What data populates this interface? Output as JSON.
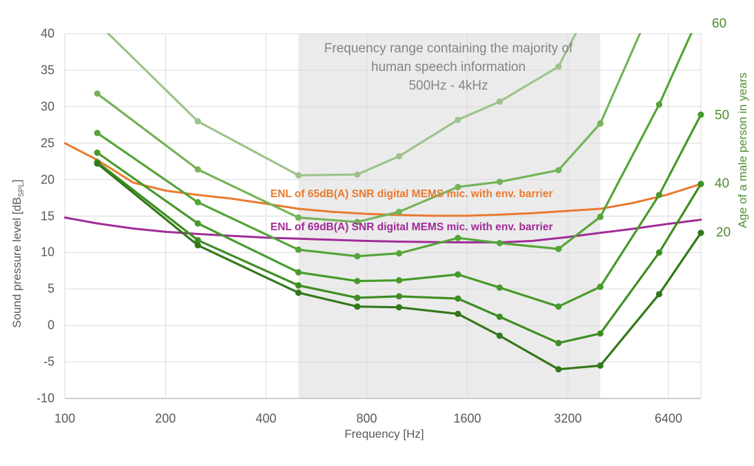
{
  "title": {
    "line1": "Frequency range containing the majority of",
    "line2": "human speech information",
    "line3": "500Hz - 4kHz"
  },
  "axes": {
    "x": {
      "title": "Frequency [Hz]",
      "ticks": [
        100,
        200,
        400,
        800,
        1600,
        3200,
        6400
      ],
      "min": 100,
      "max": 8000,
      "scale": "log2"
    },
    "y_left": {
      "title_prefix": "Sound pressure level [dB",
      "title_sub": "SPL",
      "title_suffix": "]",
      "min": -10,
      "max": 40,
      "step": 5,
      "ticks": [
        40,
        35,
        30,
        25,
        20,
        15,
        10,
        5,
        0,
        -5,
        -10
      ]
    },
    "y_right": {
      "title": "Age of a male person in years",
      "color": "#4e8f2d"
    }
  },
  "annotations": {
    "mic65_label": "ENL of 65dB(A) SNR digital MEMS mic. with env. barrier",
    "mic69_label": "ENL of 69dB(A) SNR digital MEMS mic. with env. barrier"
  },
  "colors": {
    "band": "#ebebeb",
    "gridline": "#d9d9d9",
    "axis_line": "#bfbfbf",
    "tick_text": "#595959",
    "title_text": "#848484",
    "mic65": "#e87a2d",
    "mic69": "#a02b97",
    "age_label": "#4c8c2a"
  },
  "chart_data": {
    "type": "line",
    "x_axis": {
      "label": "Frequency [Hz]",
      "scale": "log2",
      "min": 100,
      "max": 8000,
      "ticks": [
        100,
        200,
        400,
        800,
        1600,
        3200,
        6400
      ]
    },
    "y_axis": {
      "label": "Sound pressure level [dB SPL]",
      "min": -10,
      "max": 40,
      "step": 5,
      "grid": true
    },
    "shaded_band": {
      "from_hz": 500,
      "to_hz": 4000,
      "note": "Frequency range containing the majority of human speech information 500Hz - 4kHz"
    },
    "legend_position": "none",
    "series": [
      {
        "id": "hearing-threshold-oldest-light",
        "end_label": null,
        "color": "#9dc38b",
        "markers": true,
        "points": [
          [
            125,
            41.5
          ],
          [
            250,
            28.0
          ],
          [
            500,
            20.6
          ],
          [
            750,
            20.7
          ],
          [
            1000,
            23.2
          ],
          [
            1500,
            28.2
          ],
          [
            2000,
            30.7
          ],
          [
            3000,
            35.5
          ],
          [
            4000,
            46.5
          ]
        ]
      },
      {
        "id": "hearing-threshold-older-light",
        "end_label": null,
        "color": "#73b457",
        "markers": true,
        "points": [
          [
            125,
            31.8
          ],
          [
            250,
            21.4
          ],
          [
            500,
            14.8
          ],
          [
            750,
            14.2
          ],
          [
            1000,
            15.6
          ],
          [
            1500,
            19.0
          ],
          [
            2000,
            19.7
          ],
          [
            3000,
            21.3
          ],
          [
            4000,
            27.7
          ],
          [
            6000,
            46.0
          ]
        ]
      },
      {
        "id": "age-60",
        "end_label": "60",
        "color": "#54a538",
        "markers": true,
        "points": [
          [
            125,
            26.4
          ],
          [
            250,
            16.9
          ],
          [
            500,
            10.4
          ],
          [
            750,
            9.5
          ],
          [
            1000,
            9.9
          ],
          [
            1500,
            12.0
          ],
          [
            2000,
            11.3
          ],
          [
            3000,
            10.5
          ],
          [
            4000,
            14.9
          ],
          [
            6000,
            30.3
          ],
          [
            8000,
            43.0
          ]
        ]
      },
      {
        "id": "age-50",
        "end_label": "50",
        "color": "#479a2b",
        "markers": true,
        "points": [
          [
            125,
            23.7
          ],
          [
            250,
            14.0
          ],
          [
            500,
            7.3
          ],
          [
            750,
            6.1
          ],
          [
            1000,
            6.2
          ],
          [
            1500,
            7.0
          ],
          [
            2000,
            5.2
          ],
          [
            3000,
            2.6
          ],
          [
            4000,
            5.3
          ],
          [
            6000,
            17.9
          ],
          [
            8000,
            28.9
          ]
        ]
      },
      {
        "id": "age-40",
        "end_label": "40",
        "color": "#3f8d23",
        "markers": true,
        "points": [
          [
            125,
            22.4
          ],
          [
            250,
            11.7
          ],
          [
            500,
            5.5
          ],
          [
            750,
            3.8
          ],
          [
            1000,
            4.0
          ],
          [
            1500,
            3.7
          ],
          [
            2000,
            1.2
          ],
          [
            3000,
            -2.4
          ],
          [
            4000,
            -1.1
          ],
          [
            6000,
            10.0
          ],
          [
            8000,
            19.4
          ]
        ]
      },
      {
        "id": "age-20",
        "end_label": "20",
        "color": "#33781a",
        "markers": true,
        "points": [
          [
            125,
            22.2
          ],
          [
            250,
            11.0
          ],
          [
            500,
            4.5
          ],
          [
            750,
            2.6
          ],
          [
            1000,
            2.5
          ],
          [
            1500,
            1.6
          ],
          [
            2000,
            -1.4
          ],
          [
            3000,
            -6.0
          ],
          [
            4000,
            -5.5
          ],
          [
            6000,
            4.3
          ],
          [
            8000,
            12.7
          ]
        ]
      }
    ],
    "mic_curves": [
      {
        "id": "mic-enl-65dBA",
        "label": "ENL of 65dB(A) SNR digital MEMS mic. with env. barrier",
        "color": "#e87a2d",
        "markers": false,
        "points": [
          [
            100,
            25.0
          ],
          [
            125,
            22.7
          ],
          [
            160,
            19.6
          ],
          [
            200,
            18.5
          ],
          [
            250,
            17.9
          ],
          [
            315,
            17.4
          ],
          [
            400,
            16.7
          ],
          [
            500,
            16.0
          ],
          [
            630,
            15.6
          ],
          [
            800,
            15.3
          ],
          [
            1000,
            15.15
          ],
          [
            1250,
            15.05
          ],
          [
            1600,
            15.05
          ],
          [
            2000,
            15.2
          ],
          [
            2500,
            15.4
          ],
          [
            3150,
            15.7
          ],
          [
            4000,
            16.0
          ],
          [
            5000,
            16.8
          ],
          [
            6300,
            17.9
          ],
          [
            8000,
            19.4
          ]
        ]
      },
      {
        "id": "mic-enl-69dBA",
        "label": "ENL of 69dB(A) SNR digital MEMS mic. with env. barrier",
        "color": "#a02b97",
        "markers": false,
        "points": [
          [
            100,
            14.8
          ],
          [
            125,
            14.0
          ],
          [
            160,
            13.3
          ],
          [
            200,
            12.85
          ],
          [
            250,
            12.55
          ],
          [
            315,
            12.3
          ],
          [
            400,
            12.05
          ],
          [
            500,
            11.9
          ],
          [
            630,
            11.75
          ],
          [
            800,
            11.6
          ],
          [
            1000,
            11.5
          ],
          [
            1250,
            11.45
          ],
          [
            1600,
            11.4
          ],
          [
            2000,
            11.4
          ],
          [
            2500,
            11.6
          ],
          [
            3150,
            12.1
          ],
          [
            4000,
            12.7
          ],
          [
            5000,
            13.25
          ],
          [
            6300,
            13.9
          ],
          [
            8000,
            14.5
          ]
        ]
      }
    ],
    "end_labels": [
      {
        "text": "60",
        "x": 1032,
        "y": 35
      },
      {
        "text": "50",
        "x": 1036,
        "y": 168
      },
      {
        "text": "40",
        "x": 1036,
        "y": 267
      },
      {
        "text": "20",
        "x": 1038,
        "y": 338
      }
    ]
  }
}
